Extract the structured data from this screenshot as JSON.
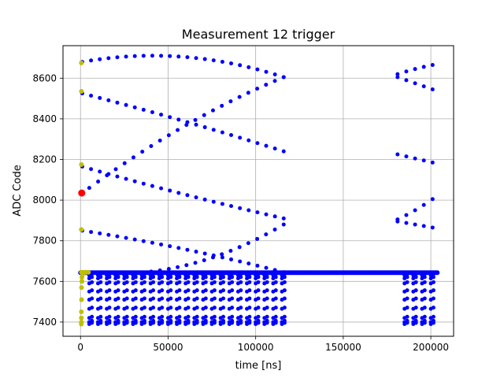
{
  "chart_data": {
    "type": "scatter",
    "title": "Measurement 12 trigger",
    "xlabel": "time [ns]",
    "ylabel": "ADC Code",
    "xlim": [
      -10000,
      213000
    ],
    "ylim": [
      7330,
      8760
    ],
    "xticks": [
      0,
      50000,
      100000,
      150000,
      200000
    ],
    "yticks": [
      7400,
      7600,
      7800,
      8000,
      8200,
      8400,
      8600
    ],
    "grid": true,
    "colors": {
      "blue": "#0000ff",
      "yellow": "#bfbf00",
      "red": "#ff0000"
    },
    "arcs": [
      {
        "x0": 1000,
        "x1": 116000,
        "y": [
          8680,
          8705,
          8605
        ]
      },
      {
        "x0": 1000,
        "x1": 116000,
        "y": [
          8525,
          8390,
          8240
        ]
      },
      {
        "x0": 1000,
        "x1": 116000,
        "y": [
          8165,
          8030,
          7910
        ]
      },
      {
        "x0": 1000,
        "x1": 116000,
        "y": [
          7850,
          7760,
          7645
        ]
      },
      {
        "x0": 5000,
        "x1": 116000,
        "y": [
          8060,
          8370,
          8605
        ]
      },
      {
        "x0": 5000,
        "x1": 116000,
        "y": [
          7645,
          7680,
          7880
        ]
      },
      {
        "x0": 181000,
        "x1": 201000,
        "y": [
          8620,
          8645,
          8665
        ]
      },
      {
        "x0": 181000,
        "x1": 201000,
        "y": [
          8225,
          8205,
          8185
        ]
      },
      {
        "x0": 181000,
        "x1": 201000,
        "y": [
          7905,
          7950,
          8005
        ]
      },
      {
        "x0": 181000,
        "x1": 201000,
        "y": [
          7895,
          7880,
          7865
        ]
      },
      {
        "x0": 181000,
        "x1": 201000,
        "y": [
          8605,
          8575,
          8545
        ]
      }
    ],
    "bottom_clusters": [
      {
        "x0": 1000,
        "x1": 116000,
        "levels": [
          7390,
          7400,
          7420,
          7465,
          7510,
          7550,
          7590,
          7615,
          7630
        ]
      },
      {
        "x0": 181000,
        "x1": 201000,
        "levels": [
          7390,
          7400,
          7420,
          7465,
          7510,
          7550,
          7590,
          7615,
          7630
        ]
      }
    ],
    "baseline": {
      "y": 7643,
      "x0": 0,
      "x1": 204000
    },
    "yellow_points": [
      {
        "x": 500,
        "y": 8675
      },
      {
        "x": 500,
        "y": 8535
      },
      {
        "x": 500,
        "y": 8175
      },
      {
        "x": 500,
        "y": 7855
      },
      {
        "x": 500,
        "y": 7645
      },
      {
        "x": 800,
        "y": 7620
      },
      {
        "x": 800,
        "y": 7600
      },
      {
        "x": 600,
        "y": 7570
      },
      {
        "x": 600,
        "y": 7510
      },
      {
        "x": 500,
        "y": 7450
      },
      {
        "x": 500,
        "y": 7420
      },
      {
        "x": 500,
        "y": 7400
      },
      {
        "x": 500,
        "y": 7390
      },
      {
        "x": 1500,
        "y": 7645
      },
      {
        "x": 2500,
        "y": 7645
      },
      {
        "x": 3500,
        "y": 7645
      },
      {
        "x": 4500,
        "y": 7645
      },
      {
        "x": 1200,
        "y": 7635
      }
    ],
    "red_points": [
      {
        "x": 700,
        "y": 8035
      }
    ]
  }
}
